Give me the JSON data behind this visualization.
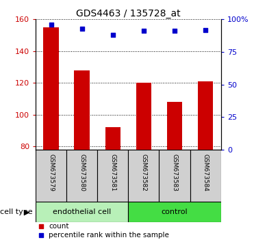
{
  "title": "GDS4463 / 135728_at",
  "samples": [
    "GSM673579",
    "GSM673580",
    "GSM673581",
    "GSM673582",
    "GSM673583",
    "GSM673584"
  ],
  "counts": [
    155,
    128,
    92,
    120,
    108,
    121
  ],
  "percentile_ranks": [
    96,
    93,
    88,
    91,
    91,
    92
  ],
  "ylim_left": [
    78,
    160
  ],
  "ylim_right": [
    0,
    100
  ],
  "yticks_left": [
    80,
    100,
    120,
    140,
    160
  ],
  "yticks_right": [
    0,
    25,
    50,
    75,
    100
  ],
  "ytick_labels_right": [
    "0",
    "25",
    "50",
    "75",
    "100%"
  ],
  "bar_color": "#cc0000",
  "scatter_color": "#0000cc",
  "group_labels": [
    "endothelial cell",
    "control"
  ],
  "group_ranges": [
    [
      0,
      3
    ],
    [
      3,
      6
    ]
  ],
  "cell_type_label": "cell type",
  "legend_count_label": "count",
  "legend_percentile_label": "percentile rank within the sample",
  "background_color": "#ffffff",
  "sample_box_color": "#d0d0d0",
  "group_color_1": "#b8f0b8",
  "group_color_2": "#44dd44",
  "bar_width": 0.5
}
